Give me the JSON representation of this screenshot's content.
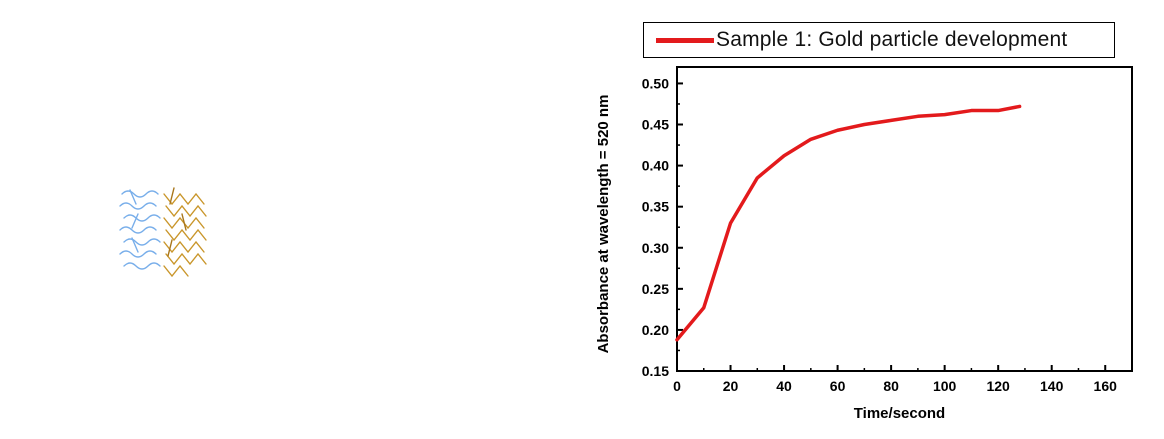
{
  "chart_data": {
    "type": "line",
    "xlabel": "Time/second",
    "ylabel": "Absorbance at wavelength = 520 nm",
    "xlim": [
      0,
      170
    ],
    "ylim": [
      0.15,
      0.52
    ],
    "x_ticks": [
      0,
      20,
      40,
      60,
      80,
      100,
      120,
      140,
      160
    ],
    "x_tick_labels": [
      "0",
      "20",
      "40",
      "60",
      "80",
      "100",
      "120",
      "140",
      "160"
    ],
    "y_ticks": [
      0.15,
      0.2,
      0.25,
      0.3,
      0.35,
      0.4,
      0.45,
      0.5
    ],
    "y_tick_labels": [
      "0.15",
      "0.20",
      "0.25",
      "0.30",
      "0.35",
      "0.40",
      "0.45",
      "0.50"
    ],
    "legend_position": "top",
    "grid": false,
    "series": [
      {
        "name": "Sample 1: Gold particle development",
        "color": "#e31a1c",
        "x": [
          0,
          10,
          20,
          30,
          40,
          50,
          60,
          70,
          80,
          90,
          100,
          110,
          120,
          128
        ],
        "y": [
          0.188,
          0.227,
          0.33,
          0.385,
          0.412,
          0.432,
          0.443,
          0.45,
          0.455,
          0.46,
          0.462,
          0.467,
          0.467,
          0.472
        ]
      }
    ]
  },
  "decoration": {
    "molecule_icon": "molecule-structure-icon",
    "colors": [
      "#6aa6e8",
      "#c9962b"
    ]
  }
}
